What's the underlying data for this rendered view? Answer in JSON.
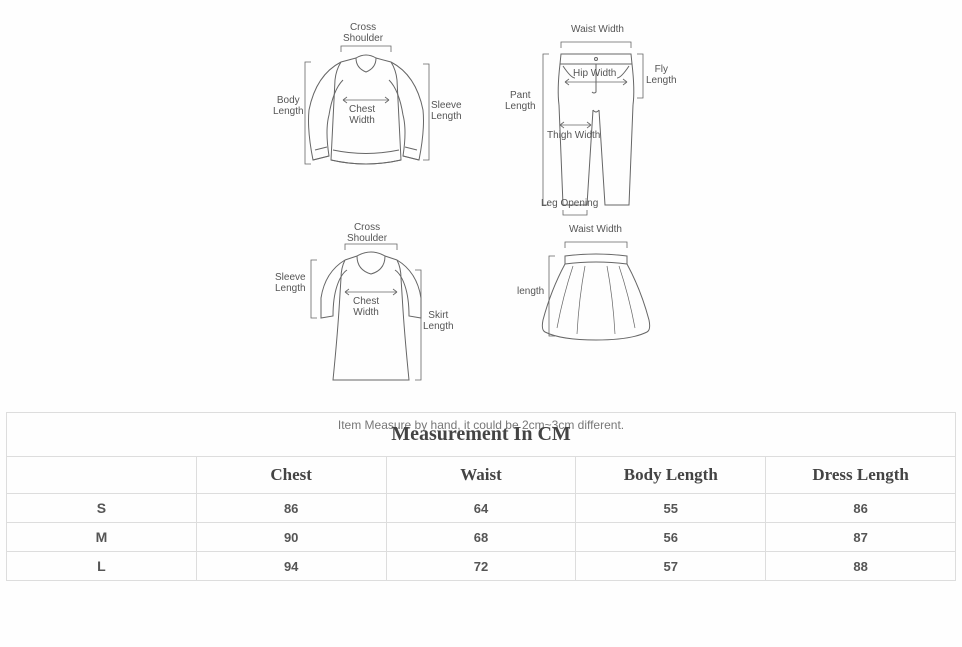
{
  "diagrams": {
    "top": {
      "cross_shoulder": "Cross\nShoulder",
      "body_length": "Body\nLength",
      "chest_width": "Chest\nWidth",
      "sleeve_length": "Sleeve\nLength"
    },
    "pants": {
      "waist_width": "Waist Width",
      "pant_length": "Pant\nLength",
      "hip_width": "Hip Width",
      "fly_length": "Fly\nLength",
      "thigh_width": "Thigh Width",
      "leg_opening": "Leg Opening"
    },
    "dress": {
      "cross_shoulder": "Cross\nShoulder",
      "sleeve_length": "Sleeve\nLength",
      "chest_width": "Chest\nWidth",
      "skirt_length": "Skirt\nLength"
    },
    "skirt": {
      "waist_width": "Waist Width",
      "length": "length"
    }
  },
  "note_text": "Item Measure by hand, it could be 2cm~3cm different.",
  "table": {
    "title": "Measurement In CM",
    "columns": [
      "Chest",
      "Waist",
      "Body Length",
      "Dress Length"
    ],
    "rows": [
      {
        "size": "S",
        "values": [
          "86",
          "64",
          "55",
          "86"
        ]
      },
      {
        "size": "M",
        "values": [
          "90",
          "68",
          "56",
          "87"
        ]
      },
      {
        "size": "L",
        "values": [
          "94",
          "72",
          "57",
          "88"
        ]
      }
    ]
  },
  "colors": {
    "line": "#666666",
    "bg": "#fefefe",
    "text": "#555555",
    "border": "#dddddd"
  }
}
